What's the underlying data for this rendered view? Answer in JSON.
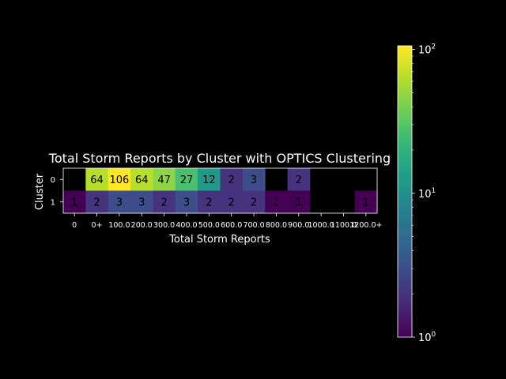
{
  "chart_data": {
    "type": "heatmap",
    "title": "Total Storm Reports by Cluster with OPTICS Clustering",
    "xlabel": "Total Storm Reports",
    "ylabel": "Cluster",
    "x_categories": [
      "0",
      "0+",
      "100.0",
      "200.0",
      "300.0",
      "400.0",
      "500.0",
      "600.0",
      "700.0",
      "800.0",
      "900.0",
      "1000.0",
      "1100.0",
      "1200.0+"
    ],
    "x_tick_labels": [
      "0",
      "0+",
      "100.0",
      "200.0",
      "300.0",
      "400.0",
      "500.0",
      "600.0",
      "700.0",
      "800.0",
      "900.0",
      "1000.0",
      "1100.0",
      "1200.0+"
    ],
    "y_categories": [
      "0",
      "1"
    ],
    "values": [
      [
        null,
        64,
        106,
        64,
        47,
        27,
        12,
        2,
        3,
        null,
        2,
        null,
        null,
        null
      ],
      [
        1,
        2,
        3,
        3,
        2,
        3,
        2,
        2,
        2,
        1,
        1,
        null,
        null,
        1
      ]
    ],
    "colorscale": "viridis",
    "color_scale_type": "log",
    "color_range": [
      1,
      106
    ],
    "colorbar_ticks": [
      {
        "value": 1,
        "base": "10",
        "exp": "0"
      },
      {
        "value": 10,
        "base": "10",
        "exp": "1"
      },
      {
        "value": 100,
        "base": "10",
        "exp": "2"
      }
    ],
    "grid": false,
    "legend": "colorbar-right"
  }
}
